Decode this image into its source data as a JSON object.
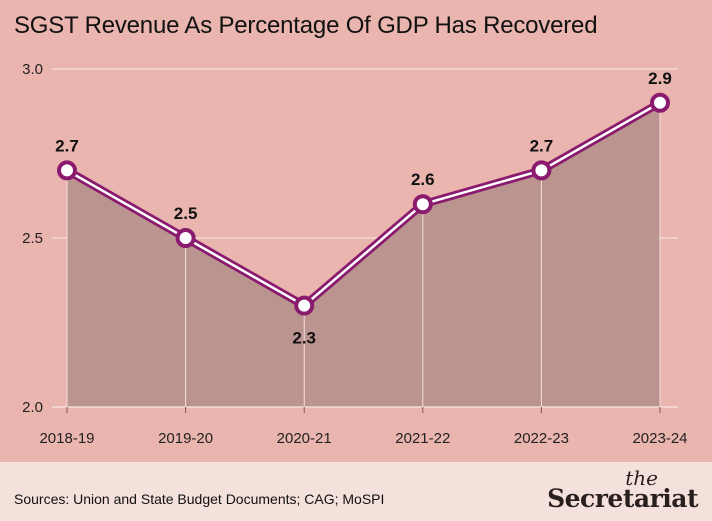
{
  "title": "SGST Revenue As Percentage Of GDP Has Recovered",
  "source": "Sources: Union and State Budget Documents; CAG; MoSPI",
  "brand": {
    "top": "the",
    "name": "Secretariat"
  },
  "colors": {
    "background": "#eab5ae",
    "area": "#b8928e",
    "line": "#8a1a6d",
    "grid": "#f7e0dc",
    "footer": "#f4e1dc"
  },
  "chart_data": {
    "type": "line",
    "title": "SGST Revenue As Percentage Of GDP Has Recovered",
    "xlabel": "",
    "ylabel": "",
    "categories": [
      "2018-19",
      "2019-20",
      "2020-21",
      "2021-22",
      "2022-23",
      "2023-24"
    ],
    "series": [
      {
        "values": [
          2.7,
          2.5,
          2.3,
          2.6,
          2.7,
          2.9
        ]
      }
    ],
    "data_labels": [
      "2.7",
      "2.5",
      "2.3",
      "2.6",
      "2.7",
      "2.9"
    ],
    "yticks": [
      "2.0",
      "2.5",
      "3.0"
    ],
    "ylim": [
      2.0,
      3.0
    ],
    "grid": true,
    "area_fill": true
  }
}
